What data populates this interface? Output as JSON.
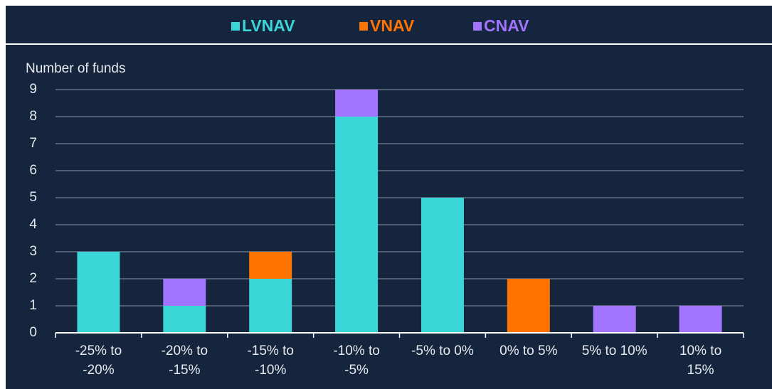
{
  "chart_data": {
    "type": "bar",
    "stacked": true,
    "y_label": "Number of funds",
    "categories": [
      "-25% to -20%",
      "-20% to -15%",
      "-15% to -10%",
      "-10% to -5%",
      "-5% to 0%",
      "0% to 5%",
      "5% to 10%",
      "10% to 15%"
    ],
    "series": [
      {
        "name": "LVNAV",
        "color": "#3ad6d8",
        "values": [
          3,
          1,
          2,
          8,
          5,
          0,
          0,
          0
        ]
      },
      {
        "name": "VNAV",
        "color": "#ff7300",
        "values": [
          0,
          0,
          1,
          0,
          0,
          2,
          0,
          0
        ]
      },
      {
        "name": "CNAV",
        "color": "#a274ff",
        "values": [
          0,
          1,
          0,
          1,
          0,
          0,
          1,
          1
        ]
      }
    ],
    "ylim": [
      0,
      9
    ],
    "yticks": [
      0,
      1,
      2,
      3,
      4,
      5,
      6,
      7,
      8,
      9
    ],
    "grid": true,
    "legend": "top"
  }
}
